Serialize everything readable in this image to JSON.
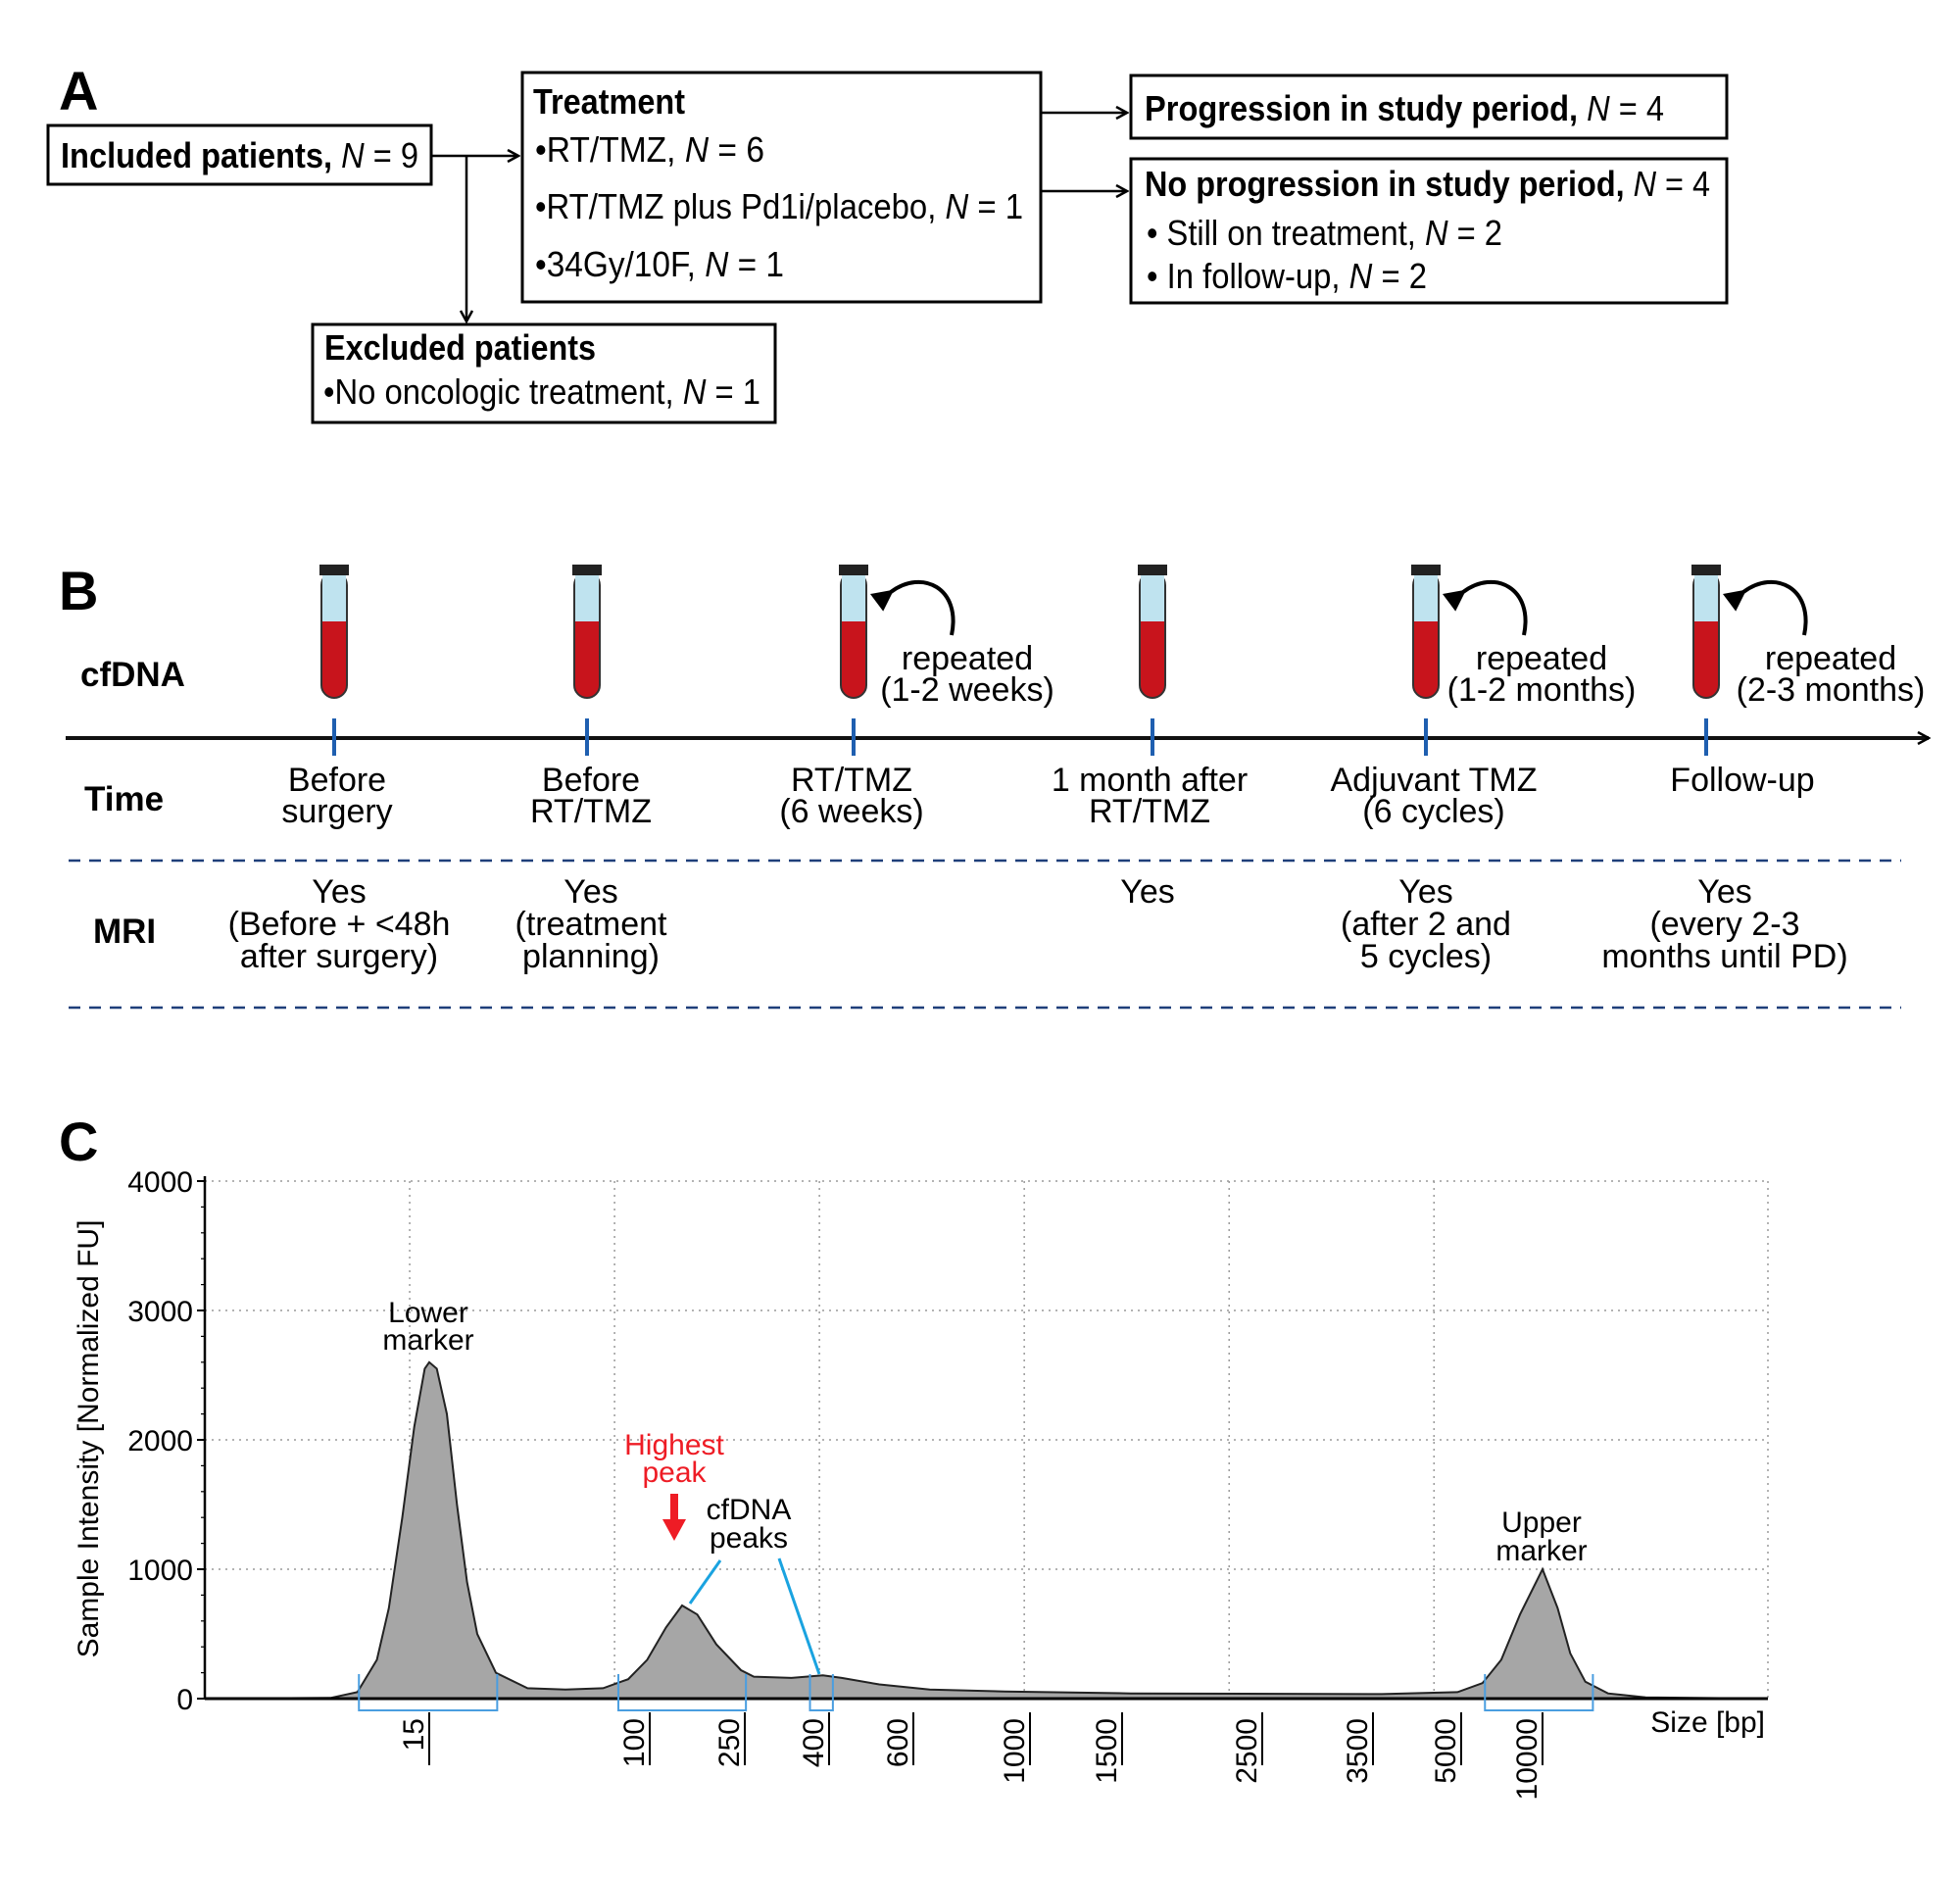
{
  "panel_a": {
    "label": "A",
    "included": {
      "text": "Included patients,",
      "var": "N",
      "value": "= 9"
    },
    "treatment": {
      "title": "Treatment",
      "items": [
        {
          "bullet": "•",
          "text": "RT/TMZ,",
          "var": "N",
          "value": "= 6"
        },
        {
          "bullet": "•",
          "text": "RT/TMZ plus Pd1i/placebo,",
          "var": "N",
          "value": "= 1"
        },
        {
          "bullet": "•",
          "text": "34Gy/10F,",
          "var": "N",
          "value": "= 1"
        }
      ]
    },
    "excluded": {
      "title": "Excluded patients",
      "items": [
        {
          "bullet": "•",
          "text": "No oncologic treatment,",
          "var": "N",
          "value": "= 1"
        }
      ]
    },
    "progression": {
      "text": "Progression in study period,",
      "var": "N",
      "value": "= 4"
    },
    "no_progression": {
      "text": "No progression in study period,",
      "var": "N",
      "value": "= 4",
      "items": [
        {
          "bullet": "•",
          "text": "Still on treatment,",
          "var": "N",
          "value": "= 2"
        },
        {
          "bullet": "•",
          "text": "In follow-up,",
          "var": "N",
          "value": "= 2"
        }
      ]
    }
  },
  "panel_b": {
    "label": "B",
    "row_cfdna": "cfDNA",
    "row_time": "Time",
    "row_mri": "MRI",
    "colors": {
      "tube_blood": "#c8141c",
      "tube_plasma": "#bfe3ef",
      "tick": "#1f5fb0",
      "dash": "#1f3f7a"
    },
    "timepoints": [
      {
        "time": [
          "Before",
          "surgery"
        ],
        "mri": [
          "Yes",
          "(Before + <48h",
          "after surgery)"
        ],
        "repeat": []
      },
      {
        "time": [
          "Before",
          "RT/TMZ"
        ],
        "mri": [
          "Yes",
          "(treatment",
          "planning)"
        ],
        "repeat": []
      },
      {
        "time": [
          "RT/TMZ",
          "(6 weeks)"
        ],
        "mri": [],
        "repeat": [
          "repeated",
          "(1-2 weeks)"
        ]
      },
      {
        "time": [
          "1 month after",
          "RT/TMZ"
        ],
        "mri": [
          "Yes"
        ],
        "repeat": []
      },
      {
        "time": [
          "Adjuvant TMZ",
          "(6 cycles)"
        ],
        "mri": [
          "Yes",
          "(after 2 and",
          "5 cycles)"
        ],
        "repeat": [
          "repeated",
          "(1-2 months)"
        ]
      },
      {
        "time": [
          "Follow-up"
        ],
        "mri": [
          "Yes",
          "(every 2-3",
          "months until PD)"
        ],
        "repeat": [
          "repeated",
          "(2-3 months)"
        ]
      }
    ]
  },
  "panel_c": {
    "label": "C",
    "annotations": {
      "lower_marker": [
        "Lower",
        "marker"
      ],
      "upper_marker": [
        "Upper",
        "marker"
      ],
      "highest_peak": [
        "Highest",
        "peak"
      ],
      "cfdna_peaks": [
        "cfDNA",
        "peaks"
      ]
    }
  },
  "chart_data": {
    "type": "area",
    "xlabel": "Size [bp]",
    "ylabel": "Sample Intensity [Normalized FU]",
    "ylim": [
      0,
      4000
    ],
    "yticks": [
      "0",
      "1000",
      "2000",
      "3000",
      "4000"
    ],
    "xticks": [
      "15",
      "100",
      "250",
      "400",
      "600",
      "1000",
      "1500",
      "2500",
      "3500",
      "5000",
      "10000"
    ],
    "x_scale": "non-linear (ladder)",
    "grid": true,
    "colors": {
      "fill": "#a6a6a6",
      "line": "#222222",
      "bracket": "#4a9ee0",
      "highlight": "#ee1c25",
      "leader": "#1aa3e0"
    },
    "peaks": [
      {
        "name": "Lower marker",
        "size_bp": 15,
        "intensity": 2600
      },
      {
        "name": "cfDNA highest peak",
        "size_bp": 151,
        "intensity": 720
      },
      {
        "name": "cfDNA peak",
        "size_bp": 389,
        "intensity": 180
      },
      {
        "name": "Upper marker",
        "size_bp": 10000,
        "intensity": 1000
      }
    ],
    "regions_bp": [
      [
        10.3,
        41.2
      ],
      [
        87.9,
        252
      ],
      [
        366,
        409
      ],
      [
        6462,
        13077
      ]
    ],
    "trace": [
      [
        0,
        0
      ],
      [
        8.4,
        5
      ],
      [
        10.2,
        50
      ],
      [
        11.5,
        300
      ],
      [
        12.3,
        700
      ],
      [
        13.2,
        1400
      ],
      [
        14,
        2100
      ],
      [
        14.7,
        2550
      ],
      [
        15,
        2600
      ],
      [
        17.9,
        2550
      ],
      [
        21.8,
        2200
      ],
      [
        25.7,
        1500
      ],
      [
        29.6,
        900
      ],
      [
        33.5,
        500
      ],
      [
        40.7,
        200
      ],
      [
        52.9,
        80
      ],
      [
        67.5,
        70
      ],
      [
        82,
        80
      ],
      [
        91.7,
        150
      ],
      [
        99,
        300
      ],
      [
        125.7,
        550
      ],
      [
        151,
        720
      ],
      [
        175,
        650
      ],
      [
        205,
        420
      ],
      [
        244,
        220
      ],
      [
        266,
        170
      ],
      [
        333,
        160
      ],
      [
        389,
        180
      ],
      [
        430,
        160
      ],
      [
        519,
        110
      ],
      [
        656,
        70
      ],
      [
        914,
        55
      ],
      [
        1562,
        40
      ],
      [
        3650,
        35
      ],
      [
        4936,
        50
      ],
      [
        6308,
        120
      ],
      [
        7462,
        300
      ],
      [
        8615,
        650
      ],
      [
        10000,
        1000
      ],
      [
        10923,
        700
      ],
      [
        11692,
        350
      ],
      [
        12615,
        130
      ],
      [
        14000,
        40
      ],
      [
        16300,
        10
      ],
      [
        23770,
        0
      ]
    ]
  }
}
